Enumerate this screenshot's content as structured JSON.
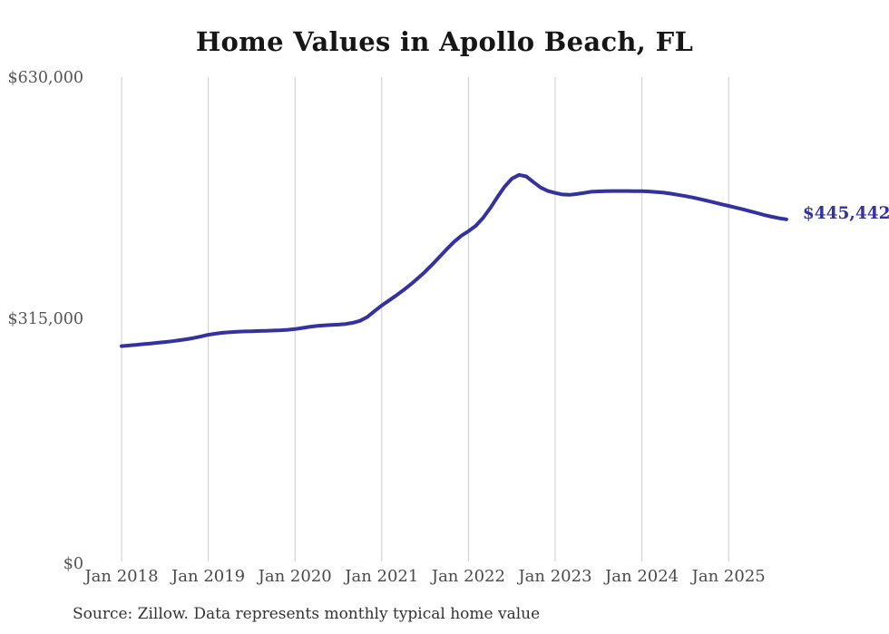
{
  "title": "Home Values in Apollo Beach, FL",
  "source_note": "Source: Zillow. Data represents monthly typical home value",
  "end_label": "$445,442",
  "colors": {
    "line": "#3431a0",
    "grid": "#cdcdcd",
    "title_text": "#161616",
    "axis_text": "#555555",
    "source_text": "#333333"
  },
  "y_axis": {
    "tick_labels": [
      "$630,000",
      "$315,000",
      "$0"
    ]
  },
  "x_axis": {
    "tick_labels": [
      "Jan 2018",
      "Jan 2019",
      "Jan 2020",
      "Jan 2021",
      "Jan 2022",
      "Jan 2023",
      "Jan 2024",
      "Jan 2025"
    ]
  },
  "chart_data": {
    "type": "line",
    "title": "Home Values in Apollo Beach, FL",
    "xlabel": "",
    "ylabel": "",
    "unit": "USD",
    "frequency": "monthly",
    "start_month": "Jan 2018",
    "end_month": "Sep 2025",
    "ylim": [
      0,
      630000
    ],
    "y_tick_values": [
      0,
      315000,
      630000
    ],
    "x_tick_labels": [
      "Jan 2018",
      "Jan 2019",
      "Jan 2020",
      "Jan 2021",
      "Jan 2022",
      "Jan 2023",
      "Jan 2024",
      "Jan 2025"
    ],
    "grid": "vertical-only",
    "legend_position": "none",
    "annotations": [
      {
        "text": "$445,442",
        "position": "line-end"
      }
    ],
    "series": [
      {
        "name": "Typical home value",
        "final_value": 445442,
        "values": [
          280000,
          280800,
          281600,
          282500,
          283400,
          284300,
          285300,
          286400,
          287600,
          289000,
          290600,
          292600,
          294800,
          296200,
          297300,
          298100,
          298700,
          299100,
          299400,
          299700,
          300000,
          300300,
          300700,
          301300,
          302200,
          303600,
          305000,
          306200,
          307000,
          307500,
          308000,
          308800,
          310400,
          313000,
          318000,
          325500,
          333000,
          339500,
          346000,
          353000,
          360500,
          368500,
          377000,
          386500,
          396500,
          406500,
          416000,
          424000,
          430000,
          437000,
          447000,
          460000,
          474500,
          488000,
          498500,
          503500,
          501500,
          494000,
          487000,
          482500,
          480000,
          478000,
          477500,
          478500,
          480000,
          481500,
          482000,
          482300,
          482500,
          482500,
          482400,
          482300,
          482200,
          481800,
          481200,
          480300,
          479000,
          477500,
          475800,
          474000,
          472000,
          469800,
          467500,
          465200,
          463000,
          460800,
          458500,
          456000,
          453500,
          451000,
          448800,
          446900,
          445442
        ]
      }
    ]
  }
}
